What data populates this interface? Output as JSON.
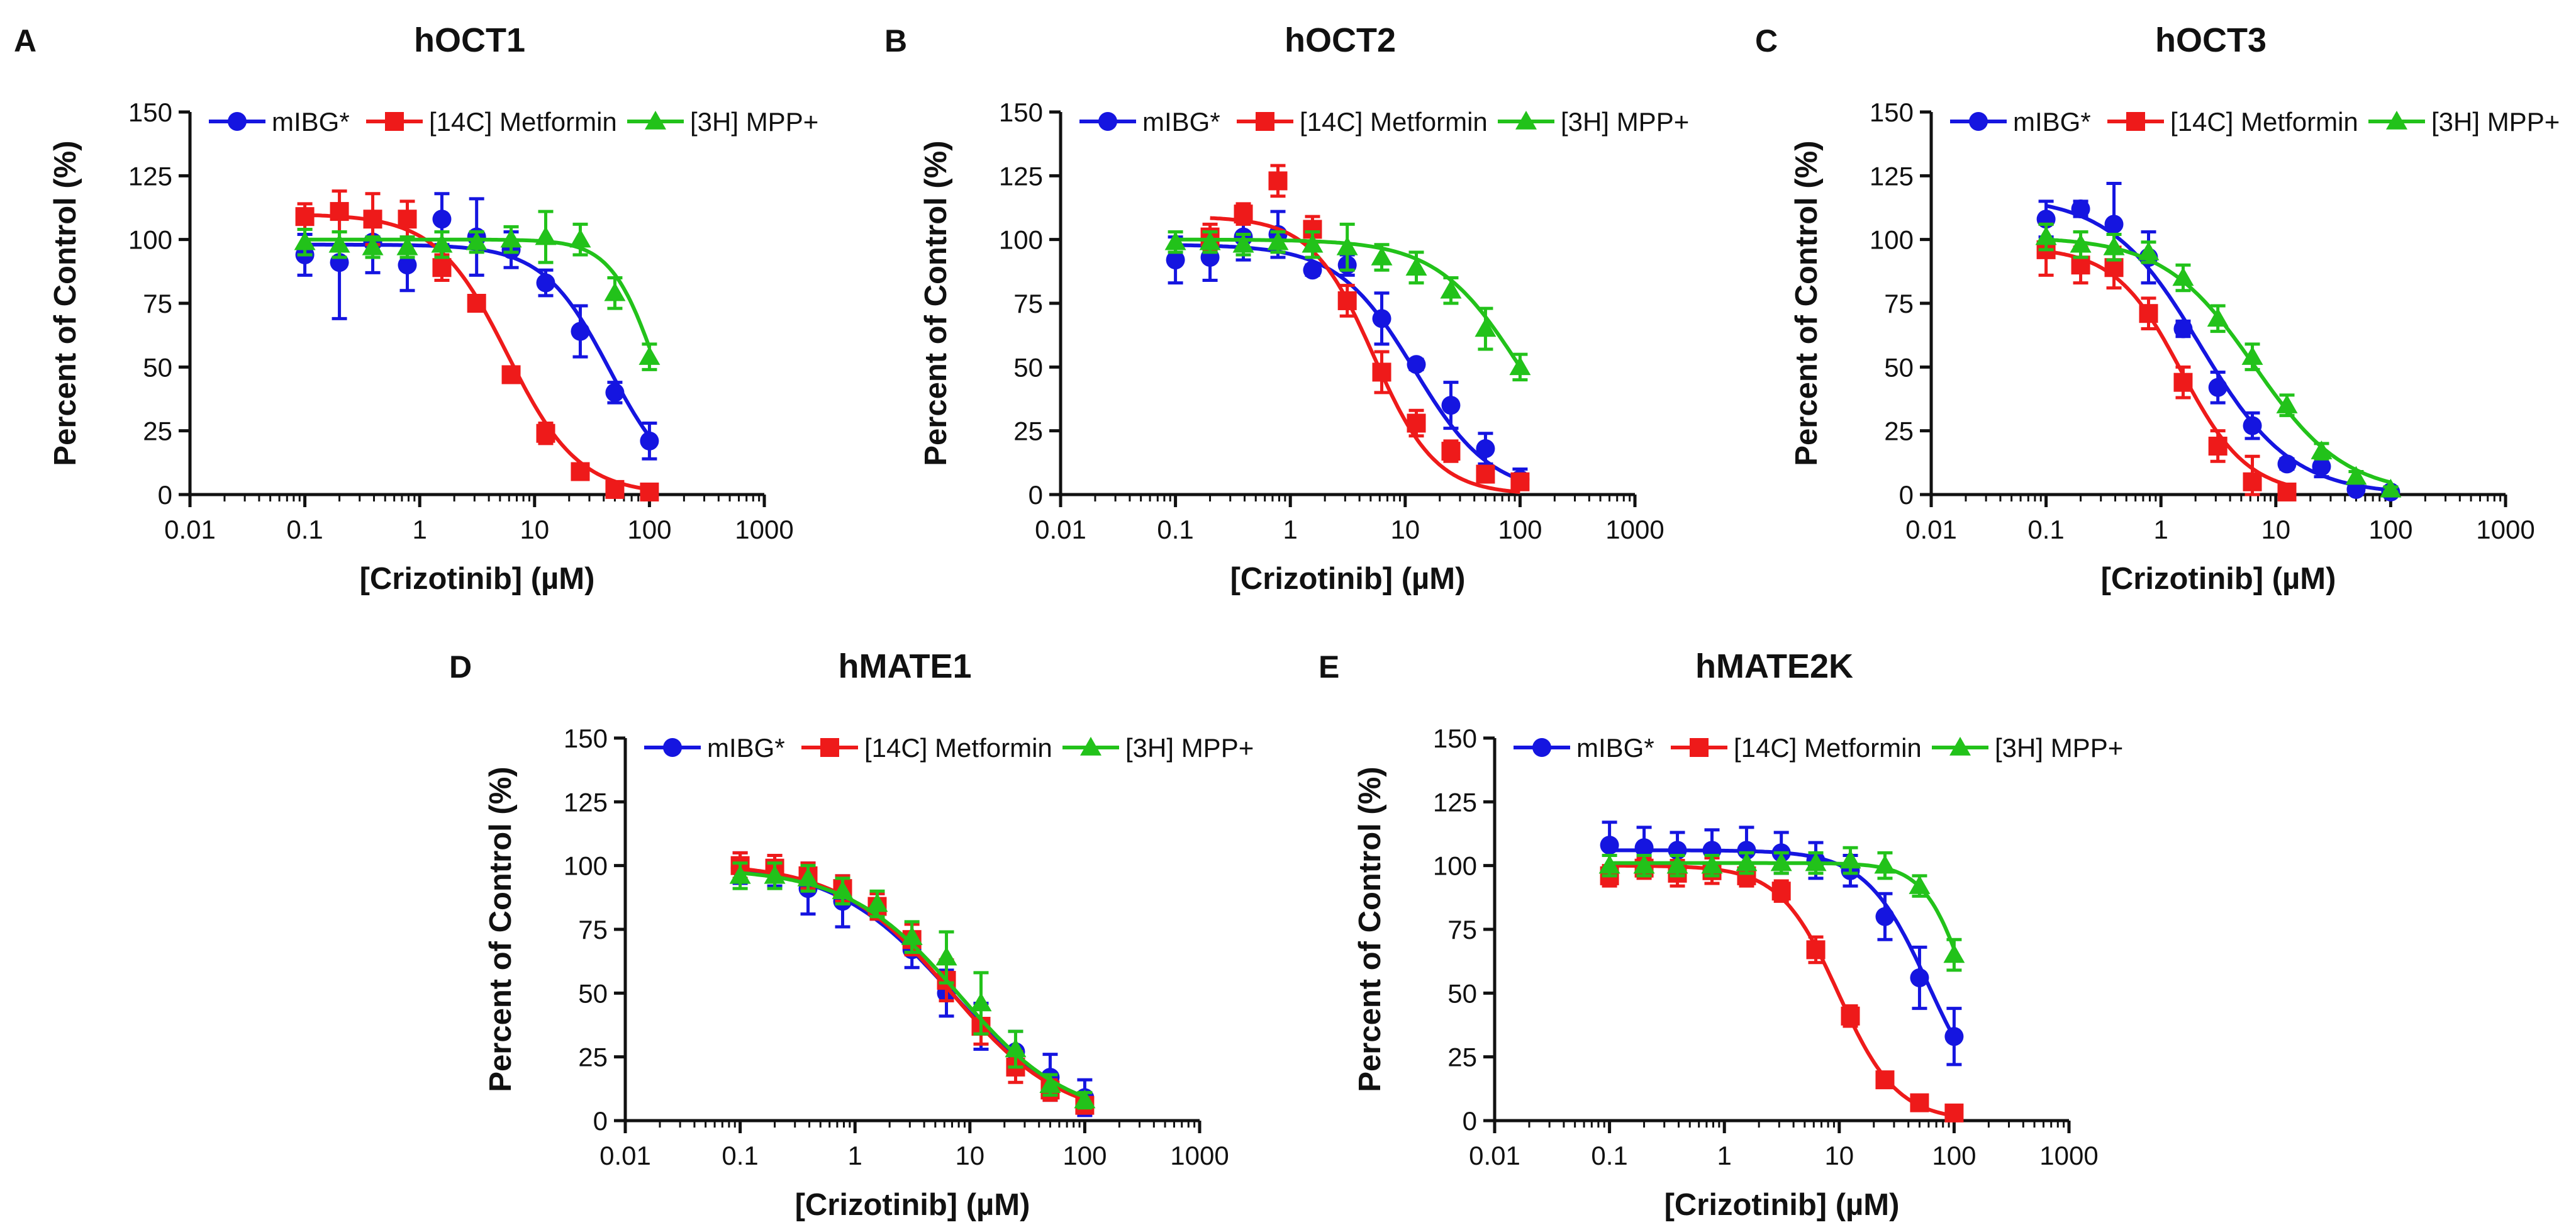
{
  "colors": {
    "mibg": "#1515e0",
    "metformin": "#ee1a1a",
    "mpp": "#22c21a",
    "axis": "#111111"
  },
  "chart_data": [
    {
      "panel": "A",
      "type": "scatter",
      "title": "hOCT1",
      "xlabel": "[Crizotinib] (µM)",
      "ylabel": "Percent of Control (%)",
      "xscale": "log",
      "xlim": [
        0.01,
        1000
      ],
      "ylim": [
        0,
        150
      ],
      "xticks": [
        "0.01",
        "0.1",
        "1",
        "10",
        "100",
        "1000"
      ],
      "yticks": [
        "0",
        "25",
        "50",
        "75",
        "100",
        "125",
        "150"
      ],
      "legend": "top",
      "series": [
        {
          "name": "mIBG*",
          "marker": "circle",
          "color": "#1515e0",
          "x": [
            0.1,
            0.2,
            0.39,
            0.78,
            1.56,
            3.13,
            6.25,
            12.5,
            25,
            50,
            100
          ],
          "y": [
            94,
            91,
            99,
            90,
            108,
            101,
            96,
            83,
            64,
            40,
            21
          ],
          "err": [
            8,
            22,
            12,
            10,
            10,
            15,
            7,
            5,
            10,
            4,
            7
          ],
          "fit": {
            "top": 98,
            "bottom": 0,
            "ic50": 45,
            "hill": 1.5
          }
        },
        {
          "name": "[14C] Metformin",
          "marker": "square",
          "color": "#ee1a1a",
          "x": [
            0.1,
            0.2,
            0.39,
            0.78,
            1.56,
            3.13,
            6.25,
            12.5,
            25,
            50,
            100
          ],
          "y": [
            109,
            111,
            108,
            108,
            89,
            75,
            47,
            24,
            9,
            2,
            1
          ],
          "err": [
            5,
            8,
            10,
            7,
            5,
            3,
            2,
            4,
            2,
            1,
            1
          ],
          "fit": {
            "top": 110,
            "bottom": 0,
            "ic50": 5.8,
            "hill": 1.4
          }
        },
        {
          "name": "[3H] MPP+",
          "marker": "triangle",
          "color": "#22c21a",
          "x": [
            0.1,
            0.2,
            0.39,
            0.78,
            1.56,
            3.13,
            6.25,
            12.5,
            25,
            50,
            100
          ],
          "y": [
            99,
            98,
            97,
            97,
            98,
            99,
            100,
            101,
            100,
            79,
            54
          ],
          "err": [
            5,
            5,
            4,
            4,
            5,
            4,
            5,
            10,
            6,
            6,
            5
          ],
          "fit": {
            "top": 100,
            "bottom": 0,
            "ic50": 115,
            "hill": 2.2
          }
        }
      ]
    },
    {
      "panel": "B",
      "type": "scatter",
      "title": "hOCT2",
      "xlabel": "[Crizotinib] (µM)",
      "ylabel": "Percent of Control (%)",
      "xscale": "log",
      "xlim": [
        0.01,
        1000
      ],
      "ylim": [
        0,
        150
      ],
      "xticks": [
        "0.01",
        "0.1",
        "1",
        "10",
        "100",
        "1000"
      ],
      "yticks": [
        "0",
        "25",
        "50",
        "75",
        "100",
        "125",
        "150"
      ],
      "legend": "top",
      "series": [
        {
          "name": "mIBG*",
          "marker": "circle",
          "color": "#1515e0",
          "x": [
            0.1,
            0.2,
            0.39,
            0.78,
            1.56,
            3.13,
            6.25,
            12.5,
            25,
            50,
            100
          ],
          "y": [
            92,
            93,
            101,
            102,
            88,
            90,
            69,
            51,
            35,
            18,
            6
          ],
          "err": [
            9,
            9,
            9,
            9,
            2,
            4,
            10,
            2,
            9,
            6,
            4
          ],
          "fit": {
            "top": 98,
            "bottom": 0,
            "ic50": 12,
            "hill": 1.3
          }
        },
        {
          "name": "[14C] Metformin",
          "marker": "square",
          "color": "#ee1a1a",
          "x": [
            0.2,
            0.39,
            0.78,
            1.56,
            3.13,
            6.25,
            12.5,
            25,
            50,
            100
          ],
          "y": [
            101,
            110,
            123,
            104,
            76,
            48,
            28,
            17,
            8,
            5
          ],
          "err": [
            5,
            4,
            6,
            5,
            6,
            8,
            5,
            4,
            3,
            2
          ],
          "fit": {
            "top": 109,
            "bottom": 0,
            "ic50": 5.3,
            "hill": 1.6
          }
        },
        {
          "name": "[3H] MPP+",
          "marker": "triangle",
          "color": "#22c21a",
          "x": [
            0.1,
            0.2,
            0.39,
            0.78,
            1.56,
            3.13,
            6.25,
            12.5,
            25,
            50,
            100
          ],
          "y": [
            99,
            99,
            98,
            99,
            98,
            97,
            93,
            89,
            80,
            65,
            50
          ],
          "err": [
            4,
            4,
            4,
            4,
            5,
            9,
            5,
            6,
            5,
            8,
            5
          ],
          "fit": {
            "top": 100,
            "bottom": 0,
            "ic50": 100,
            "hill": 1.2
          }
        }
      ]
    },
    {
      "panel": "C",
      "type": "scatter",
      "title": "hOCT3",
      "xlabel": "[Crizotinib] (µM)",
      "ylabel": "Percent of Control (%)",
      "xscale": "log",
      "xlim": [
        0.01,
        1000
      ],
      "ylim": [
        0,
        150
      ],
      "xticks": [
        "0.01",
        "0.1",
        "1",
        "10",
        "100",
        "1000"
      ],
      "yticks": [
        "0",
        "25",
        "50",
        "75",
        "100",
        "125",
        "150"
      ],
      "legend": "top",
      "series": [
        {
          "name": "mIBG*",
          "marker": "circle",
          "color": "#1515e0",
          "x": [
            0.1,
            0.2,
            0.39,
            0.78,
            1.56,
            3.13,
            6.25,
            12.5,
            25,
            50,
            100
          ],
          "y": [
            108,
            112,
            106,
            93,
            65,
            42,
            27,
            12,
            11,
            2,
            1
          ],
          "err": [
            7,
            3,
            16,
            10,
            3,
            6,
            5,
            2,
            4,
            1,
            1
          ],
          "fit": {
            "top": 117,
            "bottom": 0,
            "ic50": 2.2,
            "hill": 1.1
          }
        },
        {
          "name": "[14C] Metformin",
          "marker": "square",
          "color": "#ee1a1a",
          "x": [
            0.1,
            0.2,
            0.39,
            0.78,
            1.56,
            3.13,
            6.25,
            12.5
          ],
          "y": [
            96,
            90,
            89,
            71,
            44,
            19,
            5,
            1
          ],
          "err": [
            10,
            7,
            8,
            6,
            6,
            6,
            10,
            1
          ],
          "fit": {
            "top": 97,
            "bottom": 0,
            "ic50": 1.5,
            "hill": 1.5
          }
        },
        {
          "name": "[3H] MPP+",
          "marker": "triangle",
          "color": "#22c21a",
          "x": [
            0.1,
            0.2,
            0.39,
            0.78,
            1.56,
            3.13,
            6.25,
            12.5,
            25,
            50,
            100
          ],
          "y": [
            101,
            98,
            97,
            95,
            85,
            69,
            54,
            35,
            17,
            7,
            2
          ],
          "err": [
            5,
            5,
            5,
            4,
            5,
            5,
            5,
            4,
            3,
            2,
            1
          ],
          "fit": {
            "top": 101,
            "bottom": 0,
            "ic50": 6.5,
            "hill": 1.1
          }
        }
      ]
    },
    {
      "panel": "D",
      "type": "scatter",
      "title": "hMATE1",
      "xlabel": "[Crizotinib] (µM)",
      "ylabel": "Percent of Control (%)",
      "xscale": "log",
      "xlim": [
        0.01,
        1000
      ],
      "ylim": [
        0,
        150
      ],
      "xticks": [
        "0.01",
        "0.1",
        "1",
        "10",
        "100",
        "1000"
      ],
      "yticks": [
        "0",
        "25",
        "50",
        "75",
        "100",
        "125",
        "150"
      ],
      "legend": "top",
      "series": [
        {
          "name": "mIBG*",
          "marker": "circle",
          "color": "#1515e0",
          "x": [
            0.1,
            0.2,
            0.39,
            0.78,
            1.56,
            3.13,
            6.25,
            12.5,
            25,
            50,
            100
          ],
          "y": [
            99,
            98,
            91,
            86,
            84,
            67,
            50,
            37,
            27,
            17,
            9
          ],
          "err": [
            6,
            6,
            10,
            10,
            5,
            7,
            9,
            9,
            8,
            9,
            7
          ],
          "fit": {
            "top": 101,
            "bottom": 0,
            "ic50": 6.8,
            "hill": 0.85
          }
        },
        {
          "name": "[14C] Metformin",
          "marker": "square",
          "color": "#ee1a1a",
          "x": [
            0.1,
            0.2,
            0.39,
            0.78,
            1.56,
            3.13,
            6.25,
            12.5,
            25,
            50,
            100
          ],
          "y": [
            100,
            99,
            96,
            91,
            84,
            71,
            55,
            37,
            21,
            12,
            6
          ],
          "err": [
            5,
            5,
            5,
            5,
            5,
            6,
            8,
            7,
            6,
            4,
            3
          ],
          "fit": {
            "top": 101,
            "bottom": 0,
            "ic50": 6.8,
            "hill": 0.9
          }
        },
        {
          "name": "[3H] MPP+",
          "marker": "triangle",
          "color": "#22c21a",
          "x": [
            0.1,
            0.2,
            0.39,
            0.78,
            1.56,
            3.13,
            6.25,
            12.5,
            25,
            50,
            100
          ],
          "y": [
            96,
            96,
            95,
            90,
            85,
            72,
            64,
            46,
            28,
            14,
            8
          ],
          "err": [
            5,
            5,
            5,
            5,
            5,
            6,
            10,
            12,
            7,
            4,
            3
          ],
          "fit": {
            "top": 99,
            "bottom": 0,
            "ic50": 8,
            "hill": 0.9
          }
        }
      ]
    },
    {
      "panel": "E",
      "type": "scatter",
      "title": "hMATE2K",
      "xlabel": "[Crizotinib] (µM)",
      "ylabel": "Percent of Control (%)",
      "xscale": "log",
      "xlim": [
        0.01,
        1000
      ],
      "ylim": [
        0,
        150
      ],
      "xticks": [
        "0.01",
        "0.1",
        "1",
        "10",
        "100",
        "1000"
      ],
      "yticks": [
        "0",
        "25",
        "50",
        "75",
        "100",
        "125",
        "150"
      ],
      "legend": "top",
      "series": [
        {
          "name": "mIBG*",
          "marker": "circle",
          "color": "#1515e0",
          "x": [
            0.1,
            0.2,
            0.39,
            0.78,
            1.56,
            3.13,
            6.25,
            12.5,
            25,
            50,
            100
          ],
          "y": [
            108,
            107,
            106,
            106,
            106,
            105,
            102,
            98,
            80,
            56,
            33
          ],
          "err": [
            9,
            8,
            7,
            8,
            9,
            8,
            7,
            6,
            9,
            12,
            11
          ],
          "fit": {
            "top": 106,
            "bottom": 0,
            "ic50": 60,
            "hill": 1.6
          }
        },
        {
          "name": "[14C] Metformin",
          "marker": "square",
          "color": "#ee1a1a",
          "x": [
            0.1,
            0.2,
            0.39,
            0.78,
            1.56,
            3.13,
            6.25,
            12.5,
            25,
            50,
            100
          ],
          "y": [
            96,
            99,
            97,
            98,
            96,
            90,
            67,
            41,
            16,
            7,
            3
          ],
          "err": [
            4,
            4,
            5,
            5,
            4,
            4,
            5,
            4,
            3,
            2,
            2
          ],
          "fit": {
            "top": 100,
            "bottom": 0,
            "ic50": 9.8,
            "hill": 1.7
          }
        },
        {
          "name": "[3H] MPP+",
          "marker": "triangle",
          "color": "#22c21a",
          "x": [
            0.1,
            0.2,
            0.39,
            0.78,
            1.56,
            3.13,
            6.25,
            12.5,
            25,
            50,
            100
          ],
          "y": [
            100,
            100,
            100,
            100,
            101,
            101,
            101,
            102,
            100,
            92,
            65
          ],
          "err": [
            4,
            4,
            4,
            4,
            4,
            4,
            4,
            5,
            5,
            4,
            6
          ],
          "fit": {
            "top": 101,
            "bottom": 0,
            "ic50": 135,
            "hill": 2.3
          }
        }
      ]
    }
  ]
}
